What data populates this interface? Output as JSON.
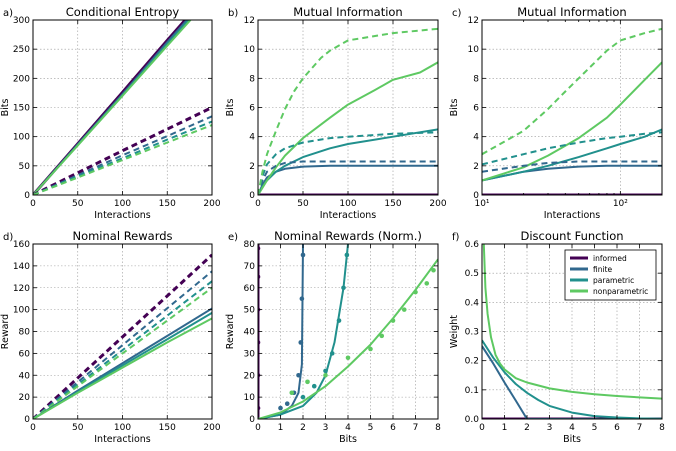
{
  "colors": {
    "informed": "#440154",
    "finite": "#31688e",
    "parametric": "#21908d",
    "nonparametric": "#5ec962"
  },
  "chart_data": [
    {
      "type": "line",
      "panel_label": "a)",
      "title": "Conditional Entropy",
      "xlabel": "Interactions",
      "ylabel": "Bits",
      "xlim": [
        0,
        200
      ],
      "ylim": [
        0,
        300
      ],
      "xticks": [
        0,
        50,
        100,
        150,
        200
      ],
      "yticks": [
        0,
        50,
        100,
        150,
        200,
        250,
        300
      ],
      "grid": true,
      "series": [
        {
          "color_key": "informed",
          "style": "solid",
          "x": [
            0,
            50,
            100,
            150,
            170
          ],
          "y": [
            0,
            88,
            176,
            265,
            300
          ]
        },
        {
          "color_key": "finite",
          "style": "solid",
          "x": [
            0,
            50,
            100,
            150,
            172
          ],
          "y": [
            0,
            87,
            173,
            262,
            300
          ]
        },
        {
          "color_key": "parametric",
          "style": "solid",
          "x": [
            0,
            50,
            100,
            150,
            174
          ],
          "y": [
            0,
            86,
            171,
            259,
            300
          ]
        },
        {
          "color_key": "nonparametric",
          "style": "solid",
          "x": [
            0,
            50,
            100,
            150,
            176
          ],
          "y": [
            0,
            85,
            170,
            256,
            300
          ]
        },
        {
          "color_key": "informed",
          "style": "dashed",
          "x": [
            0,
            50,
            100,
            150,
            200
          ],
          "y": [
            0,
            38,
            76,
            113,
            150
          ]
        },
        {
          "color_key": "finite",
          "style": "dashed",
          "x": [
            0,
            50,
            100,
            150,
            200
          ],
          "y": [
            0,
            34,
            68,
            101,
            135
          ]
        },
        {
          "color_key": "parametric",
          "style": "dashed",
          "x": [
            0,
            50,
            100,
            150,
            200
          ],
          "y": [
            0,
            32,
            63,
            95,
            126
          ]
        },
        {
          "color_key": "nonparametric",
          "style": "dashed",
          "x": [
            0,
            50,
            100,
            150,
            200
          ],
          "y": [
            0,
            30,
            60,
            90,
            120
          ]
        }
      ]
    },
    {
      "type": "line",
      "panel_label": "b)",
      "title": "Mutual Information",
      "xlabel": "Interactions",
      "ylabel": "Bits",
      "xlim": [
        0,
        200
      ],
      "ylim": [
        0,
        12
      ],
      "xticks": [
        0,
        50,
        100,
        150,
        200
      ],
      "yticks": [
        0,
        2,
        4,
        6,
        8,
        10,
        12
      ],
      "grid": true,
      "series": [
        {
          "color_key": "informed",
          "style": "solid",
          "x": [
            0,
            200
          ],
          "y": [
            0,
            0
          ]
        },
        {
          "color_key": "finite",
          "style": "solid",
          "x": [
            0,
            5,
            10,
            20,
            30,
            50,
            80,
            200
          ],
          "y": [
            0,
            0.7,
            1.2,
            1.6,
            1.8,
            1.95,
            2.0,
            2.0
          ]
        },
        {
          "color_key": "parametric",
          "style": "solid",
          "x": [
            0,
            5,
            10,
            20,
            30,
            50,
            80,
            100,
            150,
            200
          ],
          "y": [
            0,
            0.6,
            1.0,
            1.6,
            2.0,
            2.6,
            3.2,
            3.5,
            4.0,
            4.5
          ]
        },
        {
          "color_key": "nonparametric",
          "style": "solid",
          "x": [
            0,
            5,
            10,
            20,
            30,
            50,
            80,
            100,
            130,
            150,
            180,
            200
          ],
          "y": [
            0,
            0.5,
            1.0,
            1.9,
            2.7,
            3.9,
            5.3,
            6.2,
            7.2,
            7.9,
            8.4,
            9.1
          ]
        },
        {
          "color_key": "finite",
          "style": "dashed",
          "x": [
            0,
            5,
            10,
            20,
            30,
            50,
            200
          ],
          "y": [
            0,
            1.0,
            1.6,
            2.0,
            2.2,
            2.3,
            2.3
          ]
        },
        {
          "color_key": "parametric",
          "style": "dashed",
          "x": [
            0,
            5,
            10,
            20,
            30,
            50,
            80,
            100,
            150,
            200
          ],
          "y": [
            0,
            1.3,
            2.1,
            2.8,
            3.2,
            3.6,
            3.9,
            4.0,
            4.2,
            4.3
          ]
        },
        {
          "color_key": "nonparametric",
          "style": "dashed",
          "x": [
            0,
            5,
            10,
            20,
            30,
            40,
            50,
            70,
            80,
            100,
            150,
            200
          ],
          "y": [
            0,
            1.6,
            2.8,
            4.4,
            5.9,
            7.1,
            8.0,
            9.4,
            9.9,
            10.6,
            11.1,
            11.4
          ]
        }
      ]
    },
    {
      "type": "line",
      "panel_label": "c)",
      "title": "Mutual Information",
      "xlabel": "Interactions",
      "ylabel": "Bits",
      "xscale": "log",
      "xlim": [
        10,
        200
      ],
      "ylim": [
        0,
        12
      ],
      "xticks": [
        10,
        100
      ],
      "xtick_labels": [
        "10¹",
        "10²"
      ],
      "yticks": [
        0,
        2,
        4,
        6,
        8,
        10,
        12
      ],
      "grid": true,
      "series": [
        {
          "color_key": "informed",
          "style": "solid",
          "x": [
            10,
            200
          ],
          "y": [
            0,
            0
          ]
        },
        {
          "color_key": "finite",
          "style": "solid",
          "x": [
            10,
            15,
            20,
            30,
            50,
            80,
            200
          ],
          "y": [
            1.0,
            1.35,
            1.6,
            1.8,
            1.95,
            2.0,
            2.0
          ]
        },
        {
          "color_key": "parametric",
          "style": "solid",
          "x": [
            10,
            20,
            30,
            50,
            80,
            100,
            150,
            200
          ],
          "y": [
            1.0,
            1.6,
            2.0,
            2.6,
            3.2,
            3.5,
            4.0,
            4.5
          ]
        },
        {
          "color_key": "nonparametric",
          "style": "solid",
          "x": [
            10,
            20,
            30,
            50,
            80,
            100,
            150,
            200
          ],
          "y": [
            1.0,
            1.9,
            2.7,
            3.9,
            5.3,
            6.2,
            7.9,
            9.1
          ]
        },
        {
          "color_key": "finite",
          "style": "dashed",
          "x": [
            10,
            20,
            30,
            50,
            200
          ],
          "y": [
            1.6,
            2.0,
            2.2,
            2.3,
            2.3
          ]
        },
        {
          "color_key": "parametric",
          "style": "dashed",
          "x": [
            10,
            20,
            30,
            50,
            80,
            100,
            150,
            200
          ],
          "y": [
            2.1,
            2.8,
            3.2,
            3.6,
            3.9,
            4.0,
            4.2,
            4.3
          ]
        },
        {
          "color_key": "nonparametric",
          "style": "dashed",
          "x": [
            10,
            20,
            30,
            40,
            50,
            80,
            100,
            150,
            200
          ],
          "y": [
            2.8,
            4.4,
            5.9,
            7.1,
            8.0,
            9.9,
            10.6,
            11.1,
            11.4
          ]
        }
      ]
    },
    {
      "type": "line",
      "panel_label": "d)",
      "title": "Nominal Rewards",
      "xlabel": "Interactions",
      "ylabel": "Reward",
      "xlim": [
        0,
        200
      ],
      "ylim": [
        0,
        160
      ],
      "xticks": [
        0,
        50,
        100,
        150,
        200
      ],
      "yticks": [
        0,
        20,
        40,
        60,
        80,
        100,
        120,
        140,
        160
      ],
      "grid": true,
      "series": [
        {
          "color_key": "informed",
          "style": "dashed",
          "x": [
            0,
            200
          ],
          "y": [
            0,
            150
          ]
        },
        {
          "color_key": "finite",
          "style": "dashed",
          "x": [
            0,
            200
          ],
          "y": [
            0,
            135
          ]
        },
        {
          "color_key": "parametric",
          "style": "dashed",
          "x": [
            0,
            200
          ],
          "y": [
            0,
            126
          ]
        },
        {
          "color_key": "nonparametric",
          "style": "dashed",
          "x": [
            0,
            200
          ],
          "y": [
            0,
            120
          ]
        },
        {
          "color_key": "finite",
          "style": "solid",
          "x": [
            0,
            50,
            100,
            150,
            200
          ],
          "y": [
            0,
            26,
            51,
            76,
            101
          ]
        },
        {
          "color_key": "parametric",
          "style": "solid",
          "x": [
            0,
            50,
            100,
            150,
            200
          ],
          "y": [
            0,
            25,
            49,
            73,
            97
          ]
        },
        {
          "color_key": "nonparametric",
          "style": "solid",
          "x": [
            0,
            50,
            100,
            150,
            200
          ],
          "y": [
            0,
            24,
            47,
            70,
            92
          ]
        }
      ]
    },
    {
      "type": "line",
      "panel_label": "e)",
      "title": "Nominal Rewards (Norm.)",
      "xlabel": "Bits",
      "ylabel": "Reward",
      "xlim": [
        0,
        8
      ],
      "ylim": [
        0,
        80
      ],
      "xticks": [
        0,
        1,
        2,
        3,
        4,
        5,
        6,
        7,
        8
      ],
      "yticks": [
        0,
        10,
        20,
        30,
        40,
        50,
        60,
        70,
        80
      ],
      "grid": true,
      "series": [
        {
          "color_key": "informed",
          "style": "solid",
          "x": [
            0,
            0
          ],
          "y": [
            0,
            80
          ]
        },
        {
          "color_key": "finite",
          "style": "solid",
          "x": [
            0,
            1.0,
            1.5,
            1.8,
            1.95,
            2.0
          ],
          "y": [
            0,
            2,
            6,
            12,
            25,
            80
          ]
        },
        {
          "color_key": "parametric",
          "style": "solid",
          "x": [
            0,
            1.0,
            2.0,
            2.6,
            3.0,
            3.4,
            3.8,
            4.0
          ],
          "y": [
            0,
            2,
            6,
            12,
            20,
            35,
            60,
            80
          ]
        },
        {
          "color_key": "nonparametric",
          "style": "solid",
          "x": [
            0,
            1,
            2,
            3,
            4,
            5,
            6,
            7,
            8
          ],
          "y": [
            0,
            3,
            8,
            15,
            24,
            34,
            46,
            59,
            73
          ]
        }
      ],
      "scatter_series": [
        {
          "color_key": "informed",
          "x": [
            0,
            0,
            0,
            0,
            0,
            0
          ],
          "y": [
            5,
            20,
            35,
            50,
            65,
            78
          ]
        },
        {
          "color_key": "finite",
          "x": [
            1.0,
            1.3,
            1.6,
            1.8,
            1.9,
            1.95,
            2.0
          ],
          "y": [
            5,
            7,
            12,
            20,
            35,
            55,
            75
          ]
        },
        {
          "color_key": "parametric",
          "x": [
            2.0,
            2.5,
            3.0,
            3.3,
            3.6,
            3.8,
            3.95
          ],
          "y": [
            10,
            15,
            22,
            30,
            45,
            60,
            75
          ]
        },
        {
          "color_key": "nonparametric",
          "x": [
            1.5,
            2.2,
            3.0,
            4.0,
            5.0,
            5.5,
            6.0,
            6.5,
            7.0,
            7.5,
            7.8
          ],
          "y": [
            12,
            17,
            20,
            28,
            32,
            38,
            45,
            50,
            58,
            62,
            68
          ]
        }
      ]
    },
    {
      "type": "line",
      "panel_label": "f)",
      "title": "Discount Function",
      "xlabel": "Bits",
      "ylabel": "Weight",
      "xlim": [
        0,
        8
      ],
      "ylim": [
        0,
        0.6
      ],
      "xticks": [
        0,
        1,
        2,
        3,
        4,
        5,
        6,
        7,
        8
      ],
      "yticks": [
        0.0,
        0.1,
        0.2,
        0.3,
        0.4,
        0.5,
        0.6
      ],
      "grid": true,
      "legend": {
        "position": "top-right",
        "entries": [
          {
            "label": "informed",
            "color_key": "informed"
          },
          {
            "label": "finite",
            "color_key": "finite"
          },
          {
            "label": "parametric",
            "color_key": "parametric"
          },
          {
            "label": "nonparametric",
            "color_key": "nonparametric"
          }
        ]
      },
      "series": [
        {
          "color_key": "informed",
          "style": "solid",
          "x": [
            0,
            8
          ],
          "y": [
            0,
            0
          ]
        },
        {
          "color_key": "finite",
          "style": "solid",
          "x": [
            0,
            0.5,
            1.0,
            1.5,
            2.0,
            8
          ],
          "y": [
            0.25,
            0.19,
            0.125,
            0.063,
            0,
            0
          ]
        },
        {
          "color_key": "parametric",
          "style": "solid",
          "x": [
            0,
            0.5,
            1,
            1.5,
            2,
            2.5,
            3,
            4,
            5,
            6,
            7,
            8
          ],
          "y": [
            0.27,
            0.21,
            0.16,
            0.12,
            0.09,
            0.065,
            0.045,
            0.022,
            0.01,
            0.005,
            0.002,
            0.001
          ]
        },
        {
          "color_key": "nonparametric",
          "style": "solid",
          "x": [
            0.08,
            0.15,
            0.25,
            0.4,
            0.6,
            0.8,
            1.0,
            1.5,
            2,
            3,
            4,
            5,
            6,
            7,
            8
          ],
          "y": [
            0.6,
            0.45,
            0.36,
            0.28,
            0.22,
            0.19,
            0.17,
            0.14,
            0.125,
            0.105,
            0.093,
            0.085,
            0.079,
            0.074,
            0.07
          ]
        }
      ]
    }
  ]
}
